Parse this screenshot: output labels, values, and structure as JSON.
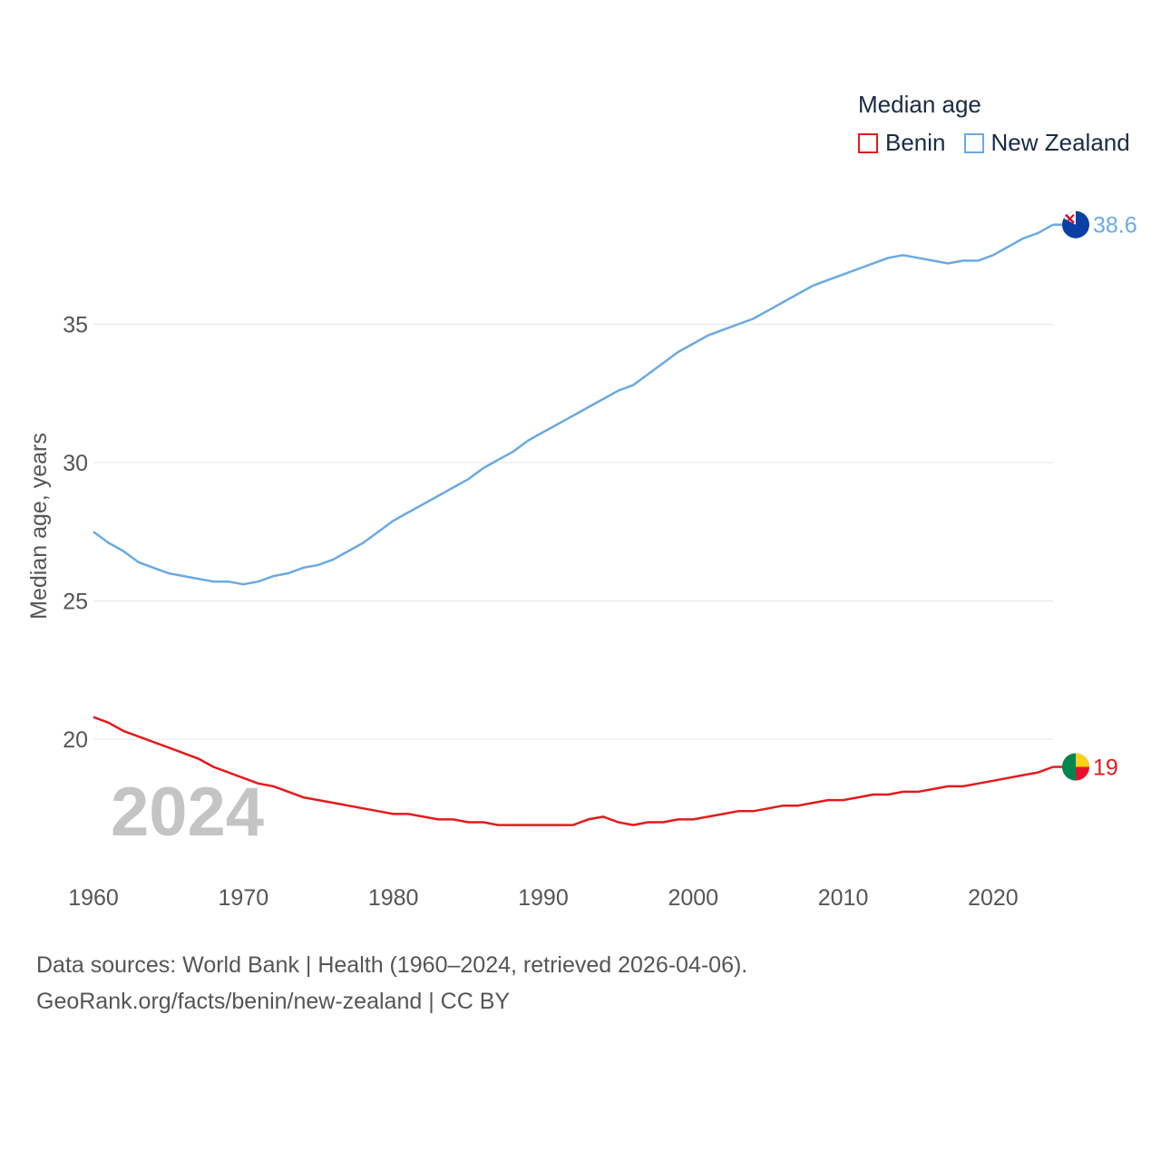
{
  "legend": {
    "title": "Median age",
    "items": [
      {
        "label": "Benin",
        "color": "#e41a1c"
      },
      {
        "label": "New Zealand",
        "color": "#6aaae4"
      }
    ]
  },
  "source": {
    "line1": "Data sources: World Bank | Health (1960–2024, retrieved 2026-04-06).",
    "line2": "GeoRank.org/facts/benin/new-zealand | CC BY"
  },
  "chart_data": {
    "type": "line",
    "title": "Median age",
    "xlabel": "",
    "ylabel": "Median age, years",
    "year_label": "2024",
    "xlim": [
      1960,
      2024
    ],
    "ylim": [
      15.5,
      40
    ],
    "xticks": [
      1960,
      1970,
      1980,
      1990,
      2000,
      2010,
      2020
    ],
    "yticks": [
      20,
      25,
      30,
      35
    ],
    "grid": true,
    "x": [
      1960,
      1961,
      1962,
      1963,
      1964,
      1965,
      1966,
      1967,
      1968,
      1969,
      1970,
      1971,
      1972,
      1973,
      1974,
      1975,
      1976,
      1977,
      1978,
      1979,
      1980,
      1981,
      1982,
      1983,
      1984,
      1985,
      1986,
      1987,
      1988,
      1989,
      1990,
      1991,
      1992,
      1993,
      1994,
      1995,
      1996,
      1997,
      1998,
      1999,
      2000,
      2001,
      2002,
      2003,
      2004,
      2005,
      2006,
      2007,
      2008,
      2009,
      2010,
      2011,
      2012,
      2013,
      2014,
      2015,
      2016,
      2017,
      2018,
      2019,
      2020,
      2021,
      2022,
      2023,
      2024
    ],
    "series": [
      {
        "name": "New Zealand",
        "color": "#6aaae4",
        "end_label": "38.6",
        "values": [
          27.5,
          27.1,
          26.8,
          26.4,
          26.2,
          26.0,
          25.9,
          25.8,
          25.7,
          25.7,
          25.6,
          25.7,
          25.9,
          26.0,
          26.2,
          26.3,
          26.5,
          26.8,
          27.1,
          27.5,
          27.9,
          28.2,
          28.5,
          28.8,
          29.1,
          29.4,
          29.8,
          30.1,
          30.4,
          30.8,
          31.1,
          31.4,
          31.7,
          32.0,
          32.3,
          32.6,
          32.8,
          33.2,
          33.6,
          34.0,
          34.3,
          34.6,
          34.8,
          35.0,
          35.2,
          35.5,
          35.8,
          36.1,
          36.4,
          36.6,
          36.8,
          37.0,
          37.2,
          37.4,
          37.5,
          37.4,
          37.3,
          37.2,
          37.3,
          37.3,
          37.5,
          37.8,
          38.1,
          38.3,
          38.6
        ]
      },
      {
        "name": "Benin",
        "color": "#e41a1c",
        "end_label": "19",
        "values": [
          20.8,
          20.6,
          20.3,
          20.1,
          19.9,
          19.7,
          19.5,
          19.3,
          19.0,
          18.8,
          18.6,
          18.4,
          18.3,
          18.1,
          17.9,
          17.8,
          17.7,
          17.6,
          17.5,
          17.4,
          17.3,
          17.3,
          17.2,
          17.1,
          17.1,
          17.0,
          17.0,
          16.9,
          16.9,
          16.9,
          16.9,
          16.9,
          16.9,
          17.1,
          17.2,
          17.0,
          16.9,
          17.0,
          17.0,
          17.1,
          17.1,
          17.2,
          17.3,
          17.4,
          17.4,
          17.5,
          17.6,
          17.6,
          17.7,
          17.8,
          17.8,
          17.9,
          18.0,
          18.0,
          18.1,
          18.1,
          18.2,
          18.3,
          18.3,
          18.4,
          18.5,
          18.6,
          18.7,
          18.8,
          19.0
        ]
      }
    ]
  }
}
